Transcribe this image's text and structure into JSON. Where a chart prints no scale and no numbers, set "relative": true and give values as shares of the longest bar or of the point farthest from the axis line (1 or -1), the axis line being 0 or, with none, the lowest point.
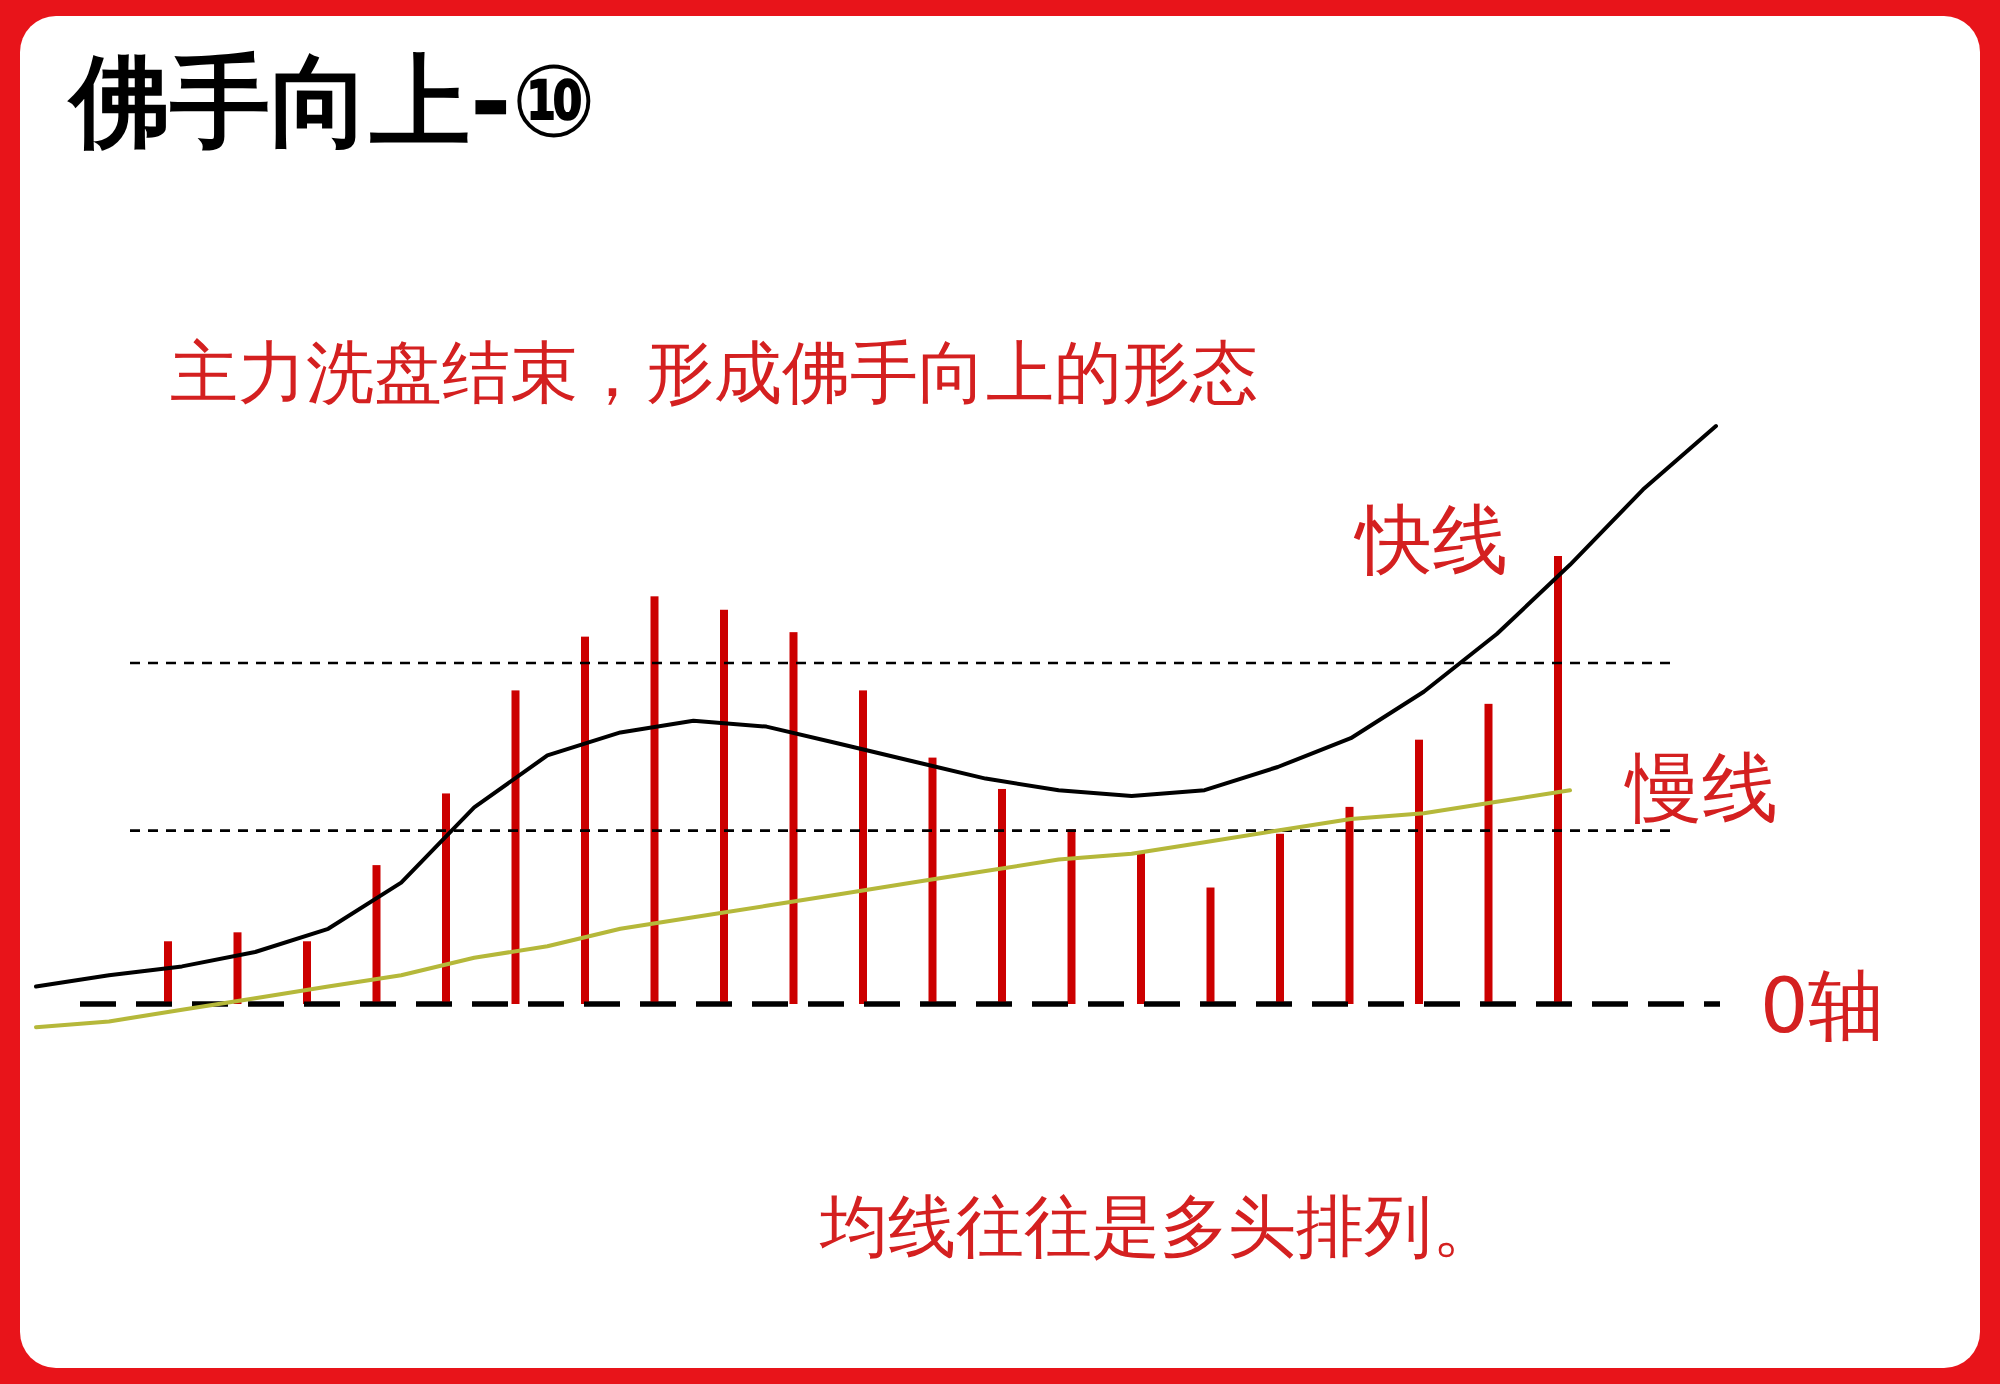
{
  "chart_data": [
    {
      "type": "bar",
      "title": "佛手向上-⑩",
      "relative": true,
      "categories": [
        null,
        null,
        null,
        null,
        null,
        null,
        null,
        null,
        null,
        null,
        null,
        null,
        null,
        null,
        null,
        null,
        null,
        null,
        null,
        null,
        null
      ],
      "series": [
        {
          "color": "#cc0000",
          "values": [
            0.14,
            0.16,
            0.14,
            0.31,
            0.47,
            0.7,
            0.82,
            0.91,
            0.88,
            0.83,
            0.7,
            0.55,
            0.48,
            0.39,
            0.34,
            0.26,
            0.38,
            0.44,
            0.59,
            0.67,
            1.0
          ]
        }
      ],
      "ref_lines": [
        {
          "axis": "y",
          "value": 0,
          "label": "0轴",
          "color": "#000000",
          "line_style": "dashed"
        }
      ],
      "annotations": [
        "主力洗盘结束，形成佛手向上的形态",
        "均线往往是多头排列。"
      ]
    },
    {
      "type": "line",
      "relative": true,
      "categories": [
        null,
        null,
        null,
        null,
        null,
        null,
        null,
        null,
        null,
        null,
        null,
        null,
        null,
        null,
        null,
        null,
        null,
        null,
        null,
        null,
        null,
        null,
        null,
        null
      ],
      "series": [
        {
          "name": "快线",
          "color": "#000000",
          "values": [
            0.03,
            0.05,
            0.065,
            0.09,
            0.13,
            0.21,
            0.34,
            0.43,
            0.47,
            0.49,
            0.48,
            0.45,
            0.42,
            0.39,
            0.37,
            0.36,
            0.37,
            0.41,
            0.46,
            0.54,
            0.64,
            0.76,
            0.89,
            1.0
          ]
        },
        {
          "name": "慢线",
          "color": "#b5b83a",
          "values": [
            -0.04,
            -0.03,
            -0.01,
            0.01,
            0.03,
            0.05,
            0.08,
            0.1,
            0.13,
            0.15,
            0.17,
            0.19,
            0.21,
            0.23,
            0.25,
            0.26,
            0.28,
            0.3,
            0.32,
            0.33,
            0.35,
            0.37,
            null,
            null
          ]
        }
      ],
      "ref_lines": [
        {
          "axis": "y",
          "value": 0,
          "color": "#000000",
          "line_style": "dashed"
        },
        {
          "axis": "y",
          "value": 0.59,
          "color": "#000000",
          "line_style": "dotted"
        },
        {
          "axis": "y",
          "value": 0.3,
          "color": "#000000",
          "line_style": "dotted"
        }
      ]
    }
  ]
}
